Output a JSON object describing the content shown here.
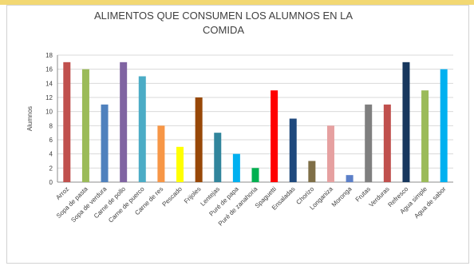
{
  "chart_data": {
    "type": "bar",
    "title_line1": "ALIMENTOS QUE CONSUMEN LOS ALUMNOS EN LA",
    "title_line2": "COMIDA",
    "ylabel": "Alumnos",
    "xlabel": "",
    "ylim": [
      0,
      18
    ],
    "yticks": [
      0,
      2,
      4,
      6,
      8,
      10,
      12,
      14,
      16,
      18
    ],
    "grid": true,
    "legend": "none",
    "categories": [
      "Arroz",
      "Sopa de pasta",
      "Sopa de verdura",
      "Carne de pollo",
      "Carne de puerco",
      "Carne de res",
      "Pescado",
      "Frijoles",
      "Lentejas",
      "Puré de papa",
      "Puré de zanahoria",
      "Spaguetti",
      "Ensaladas",
      "Chorizo",
      "Longaniza",
      "Moronga",
      "Frutas",
      "Verduras",
      "Refresco",
      "Agua simple",
      "Agua de sabor"
    ],
    "values": [
      17,
      16,
      11,
      17,
      15,
      8,
      5,
      12,
      7,
      4,
      2,
      13,
      9,
      3,
      8,
      1,
      11,
      11,
      17,
      13,
      16
    ],
    "colors": [
      "#c0504d",
      "#9bbb59",
      "#4f81bd",
      "#8064a2",
      "#4bacc6",
      "#f79646",
      "#ffff00",
      "#984807",
      "#31859c",
      "#00b0f0",
      "#00b050",
      "#ff0000",
      "#1f497d",
      "#7f6f47",
      "#e6a0a0",
      "#5b7fc8",
      "#7f7f7f",
      "#c0504d",
      "#17375e",
      "#9bbb59",
      "#00b0f0"
    ]
  }
}
